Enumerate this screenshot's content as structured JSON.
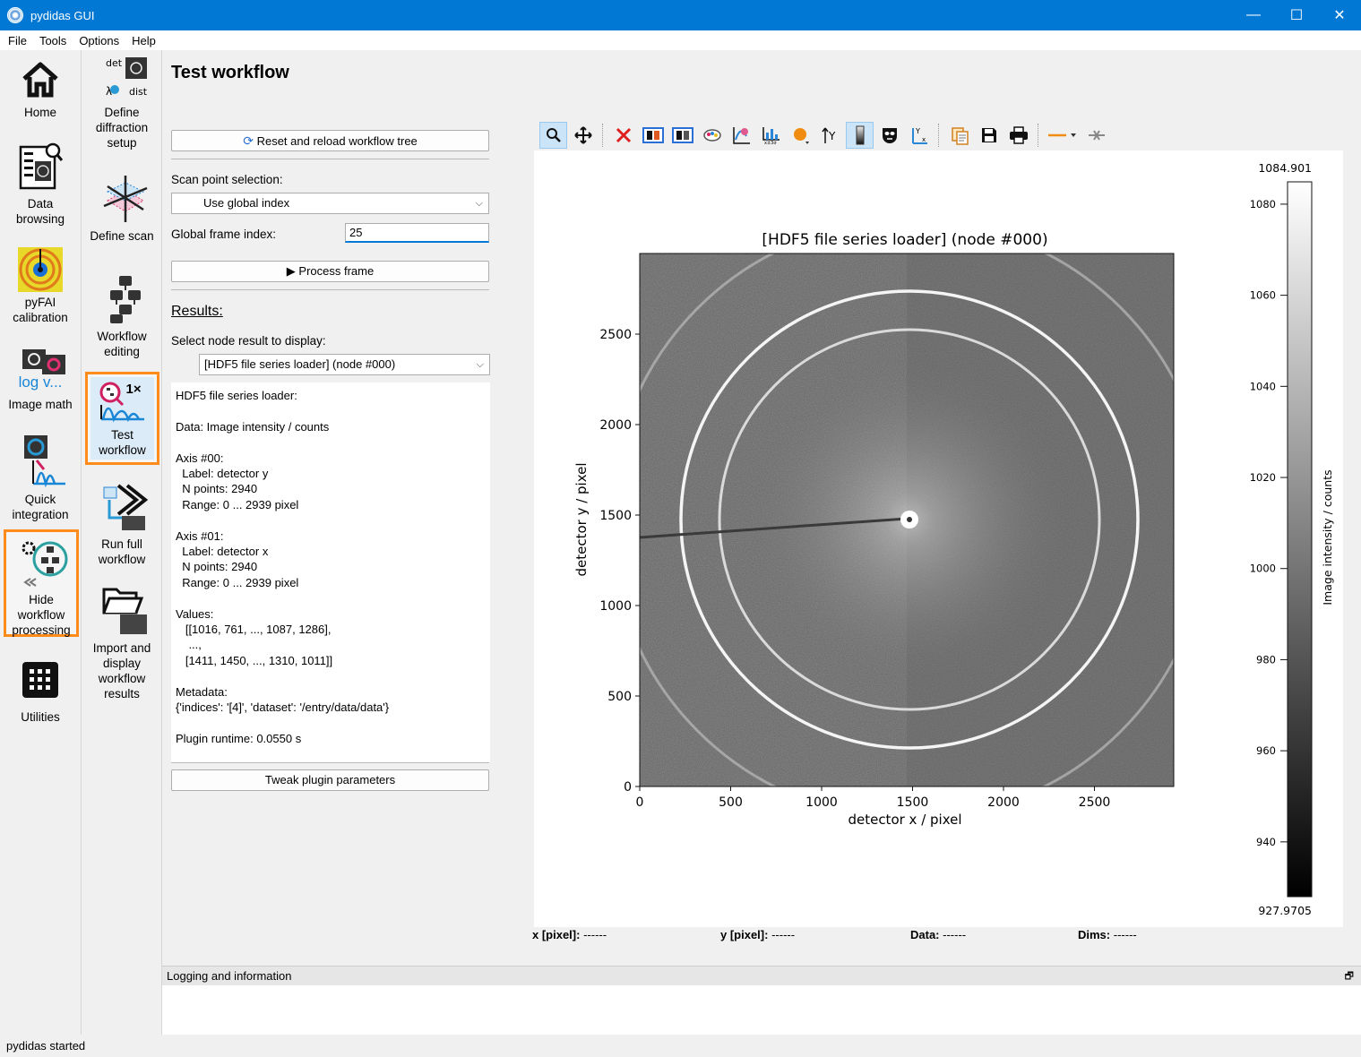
{
  "window": {
    "title": "pydidas GUI",
    "minimize": "—",
    "maximize": "☐",
    "close": "✕"
  },
  "menu": [
    "File",
    "Tools",
    "Options",
    "Help"
  ],
  "nav_main": [
    {
      "label": "Home",
      "icon": "home-icon"
    },
    {
      "label": "Data browsing",
      "icon": "data-browsing-icon"
    },
    {
      "label": "pyFAI calibration",
      "icon": "pyfai-calibration-icon"
    },
    {
      "label": "Image math",
      "icon": "image-math-icon",
      "icon_text": "log v..."
    },
    {
      "label": "Quick integration",
      "icon": "quick-integration-icon"
    },
    {
      "label": "Hide workflow processing",
      "icon": "hide-workflow-icon"
    },
    {
      "label": "Utilities",
      "icon": "utilities-icon"
    }
  ],
  "nav_workflow": [
    {
      "label": "Define diffraction setup",
      "icon": "diffraction-setup-icon",
      "icon_text_a": "det",
      "icon_text_b": "dist",
      "icon_text_c": "λ"
    },
    {
      "label": "Define scan",
      "icon": "define-scan-icon"
    },
    {
      "label": "Workflow editing",
      "icon": "workflow-editing-icon"
    },
    {
      "label": "Test workflow",
      "icon": "test-workflow-icon",
      "icon_text": "1×"
    },
    {
      "label": "Run full workflow",
      "icon": "run-workflow-icon"
    },
    {
      "label": "Import and display workflow results",
      "icon": "import-results-icon"
    }
  ],
  "page": {
    "title": "Test workflow",
    "reset_button": "Reset and reload workflow tree",
    "scan_point_label": "Scan point selection:",
    "scan_point_value": "Use global index",
    "frame_index_label": "Global frame index:",
    "frame_index_value": "25",
    "process_button": "Process frame",
    "results_heading": "Results:",
    "select_node_label": "Select node result to display:",
    "select_node_value": "[HDF5 file series loader] (node #000)",
    "results_lines": [
      "HDF5 file series loader:",
      "",
      "Data: Image intensity / counts",
      "",
      "Axis #00:",
      "  Label: detector y",
      "  N points: 2940",
      "  Range: 0 ... 2939 pixel",
      "",
      "Axis #01:",
      "  Label: detector x",
      "  N points: 2940",
      "  Range: 0 ... 2939 pixel",
      "",
      "Values:",
      "   [[1016, 761, ..., 1087, 1286],",
      "    ...,",
      "   [1411, 1450, ..., 1310, 1011]]",
      "",
      "Metadata:",
      "{'indices': '[4]', 'dataset': '/entry/data/data'}",
      "",
      "Plugin runtime: 0.0550 s"
    ],
    "tweak_button": "Tweak plugin parameters"
  },
  "toolbar": [
    "zoom-icon",
    "pan-icon",
    "reset-zoom-icon",
    "colormap-icon",
    "colormap-range-icon",
    "mask-icon",
    "profile-icon",
    "statistics-icon",
    "marker-icon",
    "y-axis-icon",
    "colorbar-icon",
    "mask-tool-icon",
    "axes-origin-icon",
    "copy-icon",
    "save-icon",
    "print-icon",
    "line-style-icon",
    "crosshair-icon"
  ],
  "plot": {
    "title": "[HDF5 file series loader] (node #000)",
    "xlabel": "detector x / pixel",
    "ylabel": "detector y / pixel",
    "xticks": [
      "0",
      "500",
      "1000",
      "1500",
      "2000",
      "2500"
    ],
    "yticks": [
      "0",
      "500",
      "1000",
      "1500",
      "2000",
      "2500"
    ],
    "colorbar_label": "Image intensity / counts",
    "colorbar_max": "1084.901",
    "colorbar_min": "927.9705",
    "colorbar_ticks": [
      "1080",
      "1060",
      "1040",
      "1020",
      "1000",
      "980",
      "960",
      "940"
    ]
  },
  "coords": {
    "x_label": "x [pixel]:",
    "x_value": "------",
    "y_label": "y [pixel]:",
    "y_value": "------",
    "data_label": "Data:",
    "data_value": "------",
    "dims_label": "Dims:",
    "dims_value": "------"
  },
  "logging": {
    "title": "Logging and information"
  },
  "statusbar": {
    "text": "pydidas started"
  }
}
